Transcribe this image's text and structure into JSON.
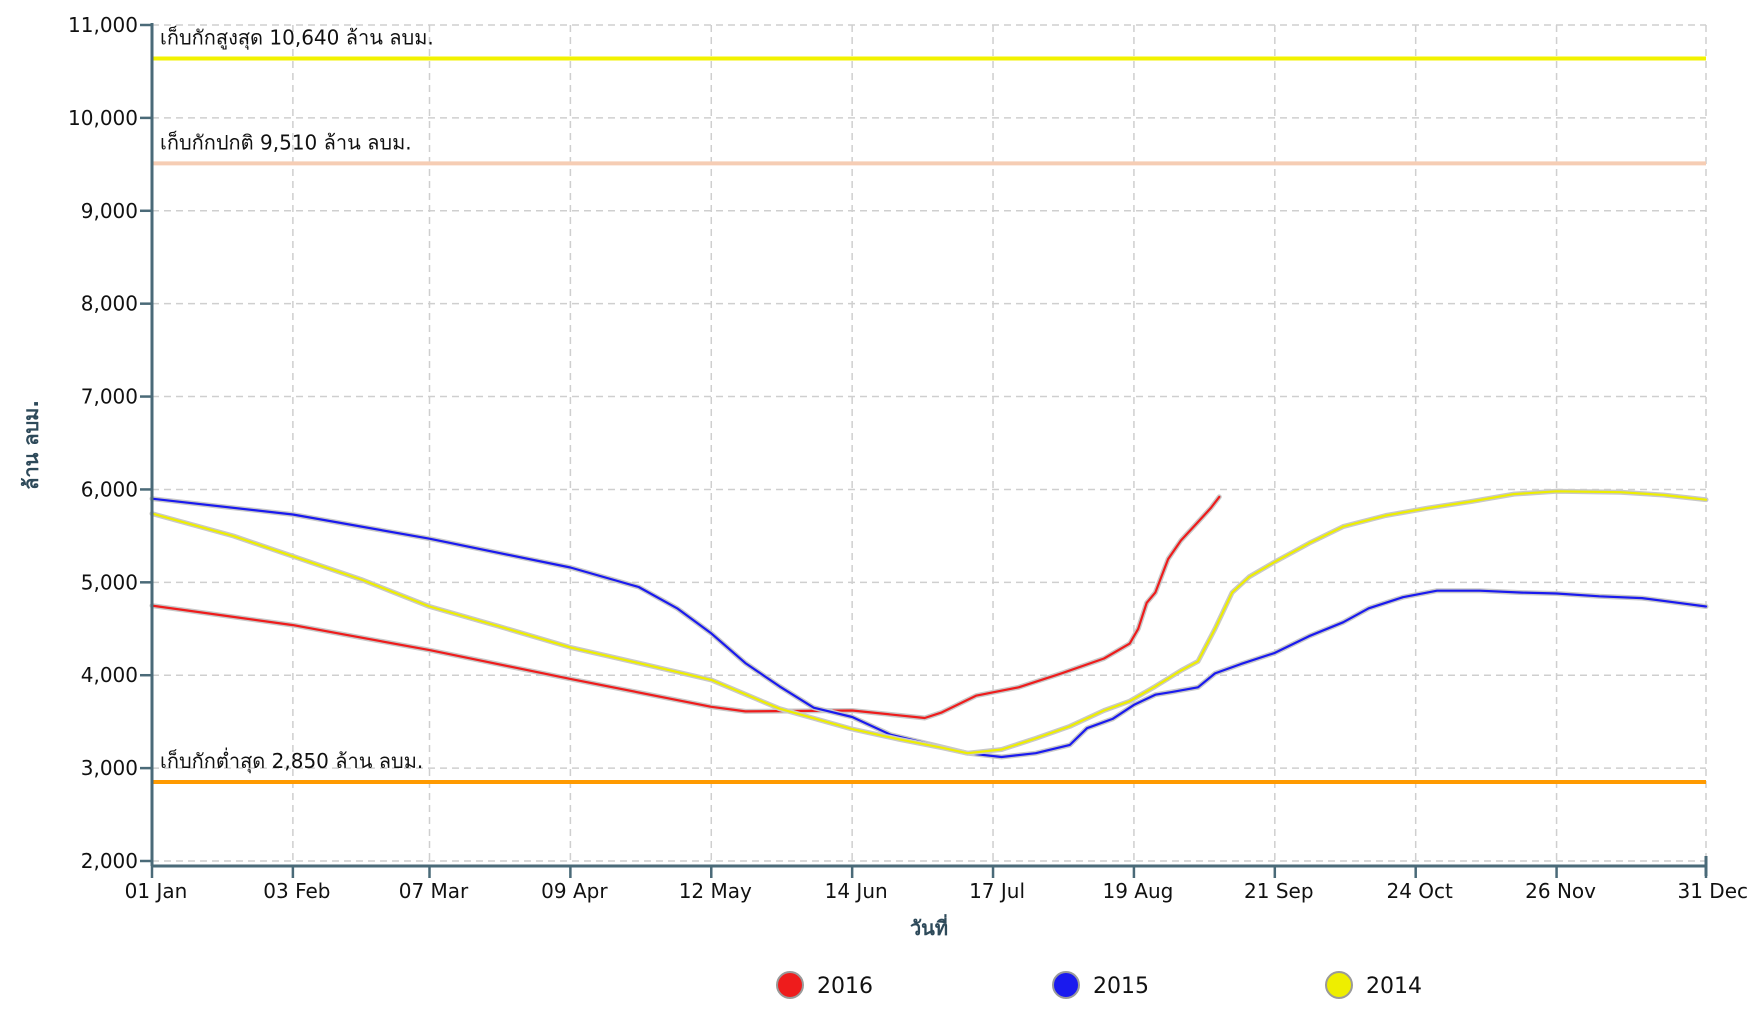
{
  "chart_data": {
    "type": "line",
    "xlabel": "วันที่",
    "ylabel": "ล้าน ลบม.",
    "ylim": [
      2000,
      11000
    ],
    "yticks": [
      2000,
      3000,
      4000,
      5000,
      6000,
      7000,
      8000,
      9000,
      10000,
      11000
    ],
    "ytick_labels": [
      "2,000",
      "3,000",
      "4,000",
      "5,000",
      "6,000",
      "7,000",
      "8,000",
      "9,000",
      "10,000",
      "11,000"
    ],
    "x_ticks": [
      {
        "label": "01 Jan",
        "day": 1
      },
      {
        "label": "03 Feb",
        "day": 34
      },
      {
        "label": "07 Mar",
        "day": 66
      },
      {
        "label": "09 Apr",
        "day": 99
      },
      {
        "label": "12 May",
        "day": 132
      },
      {
        "label": "14 Jun",
        "day": 165
      },
      {
        "label": "17 Jul",
        "day": 198
      },
      {
        "label": "19 Aug",
        "day": 231
      },
      {
        "label": "21 Sep",
        "day": 264
      },
      {
        "label": "24 Oct",
        "day": 297
      },
      {
        "label": "26 Nov",
        "day": 330
      },
      {
        "label": "31 Dec",
        "day": 365
      }
    ],
    "grid": true,
    "legend_position": "bottom",
    "reference_lines": [
      {
        "label": "เก็บกักสูงสุด 10,640 ล้าน ลบม.",
        "value": 10640,
        "color": "#f2f200"
      },
      {
        "label": "เก็บกักปกติ 9,510 ล้าน ลบม.",
        "value": 9510,
        "color": "#f6cdb4"
      },
      {
        "label": "เก็บกักต่ำสุด 2,850 ล้าน ลบม.",
        "value": 2850,
        "color": "#ff9a00"
      }
    ],
    "series": [
      {
        "name": "2016",
        "color": "#ee1c1c",
        "points": [
          [
            1,
            4750
          ],
          [
            34,
            4540
          ],
          [
            66,
            4270
          ],
          [
            99,
            3960
          ],
          [
            132,
            3660
          ],
          [
            140,
            3610
          ],
          [
            165,
            3620
          ],
          [
            182,
            3540
          ],
          [
            186,
            3600
          ],
          [
            194,
            3780
          ],
          [
            204,
            3870
          ],
          [
            214,
            4020
          ],
          [
            224,
            4180
          ],
          [
            230,
            4340
          ],
          [
            232,
            4500
          ],
          [
            234,
            4780
          ],
          [
            236,
            4890
          ],
          [
            239,
            5250
          ],
          [
            242,
            5450
          ],
          [
            246,
            5650
          ],
          [
            249,
            5800
          ],
          [
            251,
            5920
          ]
        ]
      },
      {
        "name": "2015",
        "color": "#1a1aee",
        "points": [
          [
            1,
            5900
          ],
          [
            34,
            5730
          ],
          [
            66,
            5470
          ],
          [
            99,
            5160
          ],
          [
            115,
            4950
          ],
          [
            124,
            4720
          ],
          [
            132,
            4450
          ],
          [
            140,
            4130
          ],
          [
            148,
            3880
          ],
          [
            156,
            3650
          ],
          [
            165,
            3550
          ],
          [
            174,
            3360
          ],
          [
            184,
            3250
          ],
          [
            192,
            3160
          ],
          [
            200,
            3120
          ],
          [
            208,
            3160
          ],
          [
            216,
            3250
          ],
          [
            220,
            3430
          ],
          [
            226,
            3530
          ],
          [
            231,
            3680
          ],
          [
            236,
            3790
          ],
          [
            240,
            3820
          ],
          [
            246,
            3870
          ],
          [
            250,
            4020
          ],
          [
            256,
            4120
          ],
          [
            264,
            4240
          ],
          [
            272,
            4420
          ],
          [
            280,
            4570
          ],
          [
            286,
            4720
          ],
          [
            294,
            4840
          ],
          [
            302,
            4910
          ],
          [
            312,
            4910
          ],
          [
            322,
            4890
          ],
          [
            330,
            4880
          ],
          [
            340,
            4850
          ],
          [
            350,
            4830
          ],
          [
            360,
            4770
          ],
          [
            365,
            4740
          ]
        ]
      },
      {
        "name": "2014",
        "color": "#eeee00",
        "points": [
          [
            1,
            5740
          ],
          [
            20,
            5500
          ],
          [
            34,
            5280
          ],
          [
            50,
            5030
          ],
          [
            66,
            4740
          ],
          [
            82,
            4530
          ],
          [
            99,
            4300
          ],
          [
            115,
            4130
          ],
          [
            132,
            3950
          ],
          [
            148,
            3640
          ],
          [
            165,
            3420
          ],
          [
            176,
            3310
          ],
          [
            186,
            3220
          ],
          [
            192,
            3160
          ],
          [
            200,
            3200
          ],
          [
            208,
            3320
          ],
          [
            216,
            3450
          ],
          [
            224,
            3620
          ],
          [
            230,
            3720
          ],
          [
            236,
            3880
          ],
          [
            242,
            4050
          ],
          [
            246,
            4150
          ],
          [
            250,
            4500
          ],
          [
            254,
            4890
          ],
          [
            258,
            5060
          ],
          [
            264,
            5220
          ],
          [
            272,
            5420
          ],
          [
            280,
            5600
          ],
          [
            290,
            5720
          ],
          [
            300,
            5800
          ],
          [
            310,
            5870
          ],
          [
            320,
            5950
          ],
          [
            330,
            5980
          ],
          [
            345,
            5970
          ],
          [
            355,
            5940
          ],
          [
            365,
            5890
          ]
        ]
      }
    ]
  }
}
